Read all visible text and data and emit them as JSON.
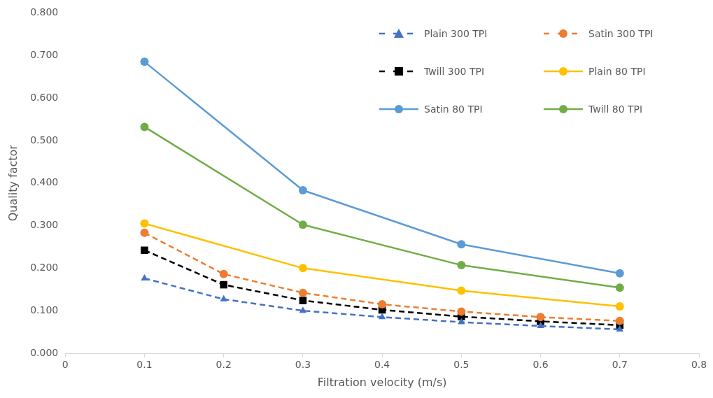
{
  "chart_data": {
    "type": "line",
    "xlabel": "Filtration velocity (m/s)",
    "ylabel": "Quality factor",
    "xlim": [
      0,
      0.8
    ],
    "xticks": [
      0,
      0.1,
      0.2,
      0.3,
      0.4,
      0.5,
      0.6,
      0.7,
      0.8
    ],
    "ylim": [
      0,
      0.8
    ],
    "yticks": [
      {
        "value": 0,
        "label": "0.000"
      },
      {
        "value": 0.1,
        "label": "0.100"
      },
      {
        "value": 0.2,
        "label": "0.200"
      },
      {
        "value": 0.3,
        "label": "0.300"
      },
      {
        "value": 0.4,
        "label": "0.400"
      },
      {
        "value": 0.5,
        "label": "0.500"
      },
      {
        "value": 0.6,
        "label": "0.600"
      },
      {
        "value": 0.7,
        "label": "0.700"
      },
      {
        "value": 0.8,
        "label": "0.800"
      }
    ],
    "grid": false,
    "legend": "top right",
    "series": [
      {
        "name": "Plain 300 TPI",
        "color": "#4472c4",
        "marker": "triangle",
        "line_style": "dashed",
        "x": [
          0.1,
          0.2,
          0.3,
          0.4,
          0.5,
          0.6,
          0.7
        ],
        "values": [
          0.176,
          0.127,
          0.1,
          0.085,
          0.073,
          0.064,
          0.056
        ]
      },
      {
        "name": "Satin 300 TPI",
        "color": "#ed7d31",
        "marker": "circle",
        "line_style": "dashed",
        "x": [
          0.1,
          0.2,
          0.3,
          0.4,
          0.5,
          0.6,
          0.7
        ],
        "values": [
          0.283,
          0.186,
          0.142,
          0.115,
          0.098,
          0.085,
          0.076
        ]
      },
      {
        "name": "Twill 300 TPI",
        "color": "#000000",
        "marker": "square",
        "line_style": "dashed",
        "x": [
          0.1,
          0.2,
          0.3,
          0.4,
          0.5,
          0.6,
          0.7
        ],
        "values": [
          0.242,
          0.161,
          0.124,
          0.102,
          0.086,
          0.075,
          0.066
        ]
      },
      {
        "name": "Plain 80 TPI",
        "color": "#ffc000",
        "marker": "circle",
        "line_style": "solid",
        "x": [
          0.1,
          0.3,
          0.5,
          0.7
        ],
        "values": [
          0.305,
          0.2,
          0.147,
          0.11
        ]
      },
      {
        "name": "Satin 80 TPI",
        "color": "#5b9bd5",
        "marker": "circle",
        "line_style": "solid",
        "x": [
          0.1,
          0.3,
          0.5,
          0.7
        ],
        "values": [
          0.685,
          0.383,
          0.256,
          0.188
        ]
      },
      {
        "name": "Twill 80 TPI",
        "color": "#70ad47",
        "marker": "circle",
        "line_style": "solid",
        "x": [
          0.1,
          0.3,
          0.5,
          0.7
        ],
        "values": [
          0.532,
          0.302,
          0.207,
          0.154
        ]
      }
    ]
  }
}
